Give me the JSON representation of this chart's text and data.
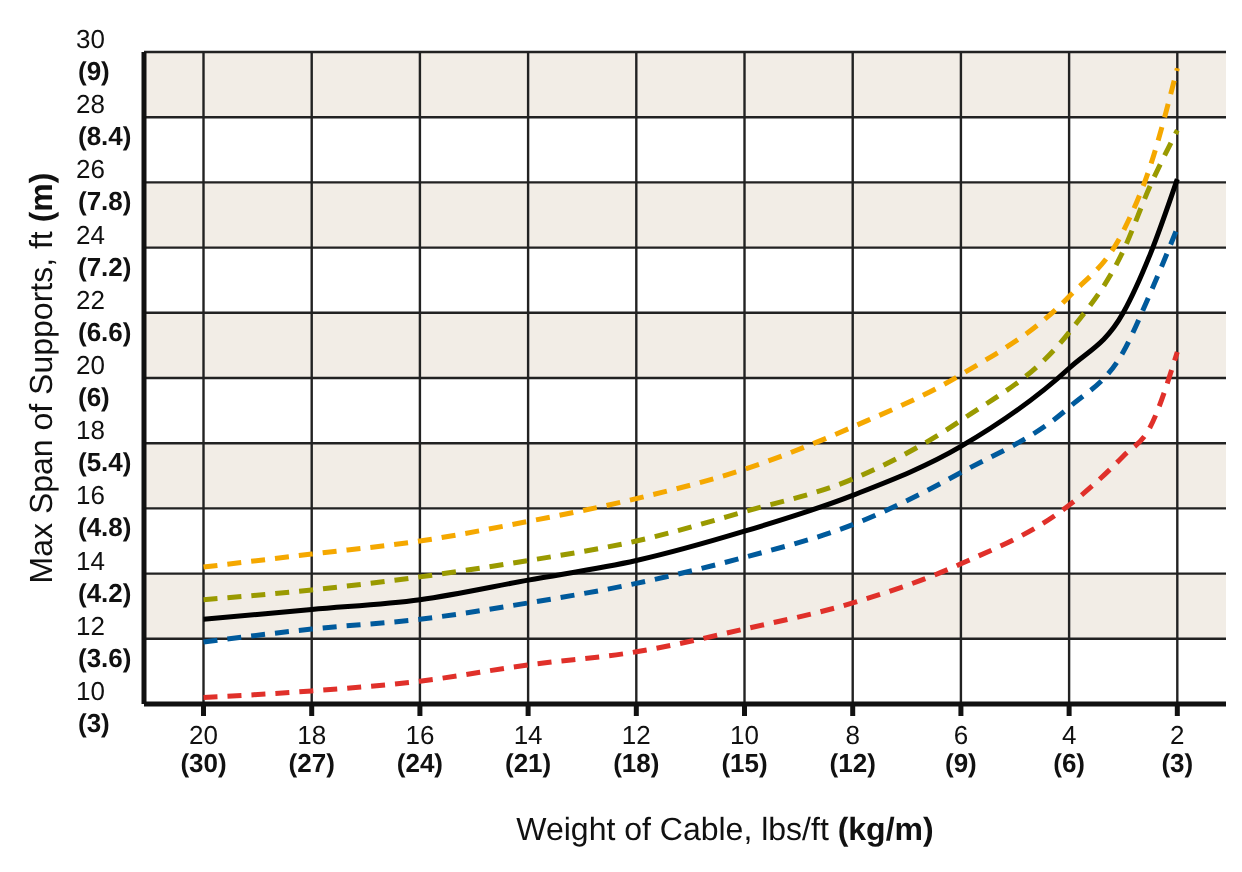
{
  "chart_data": {
    "type": "line",
    "xlabel": "Weight of Cable, lbs/ft (kg/m)",
    "ylabel": "Max Span of Supports, ft (m)",
    "xlim": [
      21.1,
      1.1
    ],
    "ylim": [
      10,
      30
    ],
    "xticks": [
      20,
      18,
      16,
      14,
      12,
      10,
      8,
      6,
      4,
      2
    ],
    "yticks": [
      10,
      12,
      14,
      16,
      18,
      20,
      22,
      24,
      26,
      28,
      30
    ],
    "x2lim": [
      31.65,
      1.65
    ],
    "x2ticks": [
      {
        "value": 30,
        "label": "(30)"
      },
      {
        "value": 27,
        "label": "(27)"
      },
      {
        "value": 24,
        "label": "(24)"
      },
      {
        "value": 21,
        "label": "(21)"
      },
      {
        "value": 18,
        "label": "(18)"
      },
      {
        "value": 15,
        "label": "(15)"
      },
      {
        "value": 12,
        "label": "(12)"
      },
      {
        "value": 9,
        "label": "(9)"
      },
      {
        "value": 6,
        "label": "(6)"
      },
      {
        "value": 3,
        "label": "(3)"
      }
    ],
    "y2lim": [
      3,
      9
    ],
    "y2ticks": [
      {
        "value": 3,
        "label": "(3)"
      },
      {
        "value": 3.6,
        "label": "(3.6)"
      },
      {
        "value": 4.2,
        "label": "(4.2)"
      },
      {
        "value": 4.8,
        "label": "(4.8)"
      },
      {
        "value": 5.4,
        "label": "(5.4)"
      },
      {
        "value": 6,
        "label": "(6)"
      },
      {
        "value": 6.6,
        "label": "(6.6)"
      },
      {
        "value": 7.2,
        "label": "(7.2)"
      },
      {
        "value": 7.8,
        "label": "(7.8)"
      },
      {
        "value": 8.4,
        "label": "(8.4)"
      },
      {
        "value": 9,
        "label": "(9)"
      }
    ],
    "x": [
      20,
      18,
      16,
      14,
      12,
      10,
      8,
      6,
      4,
      3,
      2.5,
      2
    ],
    "series": [
      {
        "color": "#f5a800",
        "line_style": "dashed",
        "values": [
          14.2,
          14.6,
          15.0,
          15.6,
          16.3,
          17.2,
          18.5,
          20.1,
          22.5,
          24.5,
          26.5,
          29.5
        ]
      },
      {
        "color": "#9a9a00",
        "line_style": "dashed",
        "values": [
          13.2,
          13.5,
          13.9,
          14.4,
          15.0,
          15.9,
          16.9,
          18.7,
          21.4,
          23.9,
          25.9,
          27.6
        ]
      },
      {
        "color": "#000000",
        "line_style": "solid",
        "values": [
          12.6,
          12.9,
          13.2,
          13.8,
          14.4,
          15.3,
          16.4,
          17.9,
          20.3,
          22.0,
          23.8,
          26.1
        ]
      },
      {
        "color": "#005a9c",
        "line_style": "dashed",
        "values": [
          11.9,
          12.3,
          12.6,
          13.1,
          13.7,
          14.5,
          15.5,
          17.1,
          19.1,
          20.8,
          22.6,
          24.6
        ]
      },
      {
        "color": "#e0302a",
        "line_style": "dashed",
        "values": [
          10.2,
          10.4,
          10.7,
          11.2,
          11.6,
          12.3,
          13.1,
          14.3,
          16.1,
          17.6,
          18.5,
          20.8
        ]
      }
    ],
    "bands": [
      {
        "axis": "y",
        "from": 12,
        "to": 14,
        "color": "#f2ede6"
      },
      {
        "axis": "y",
        "from": 16,
        "to": 18,
        "color": "#f2ede6"
      },
      {
        "axis": "y",
        "from": 20,
        "to": 22,
        "color": "#f2ede6"
      },
      {
        "axis": "y",
        "from": 24,
        "to": 26,
        "color": "#f2ede6"
      },
      {
        "axis": "y",
        "from": 28,
        "to": 30,
        "color": "#f2ede6"
      }
    ],
    "grid": true,
    "marker": "none",
    "legend": false
  }
}
